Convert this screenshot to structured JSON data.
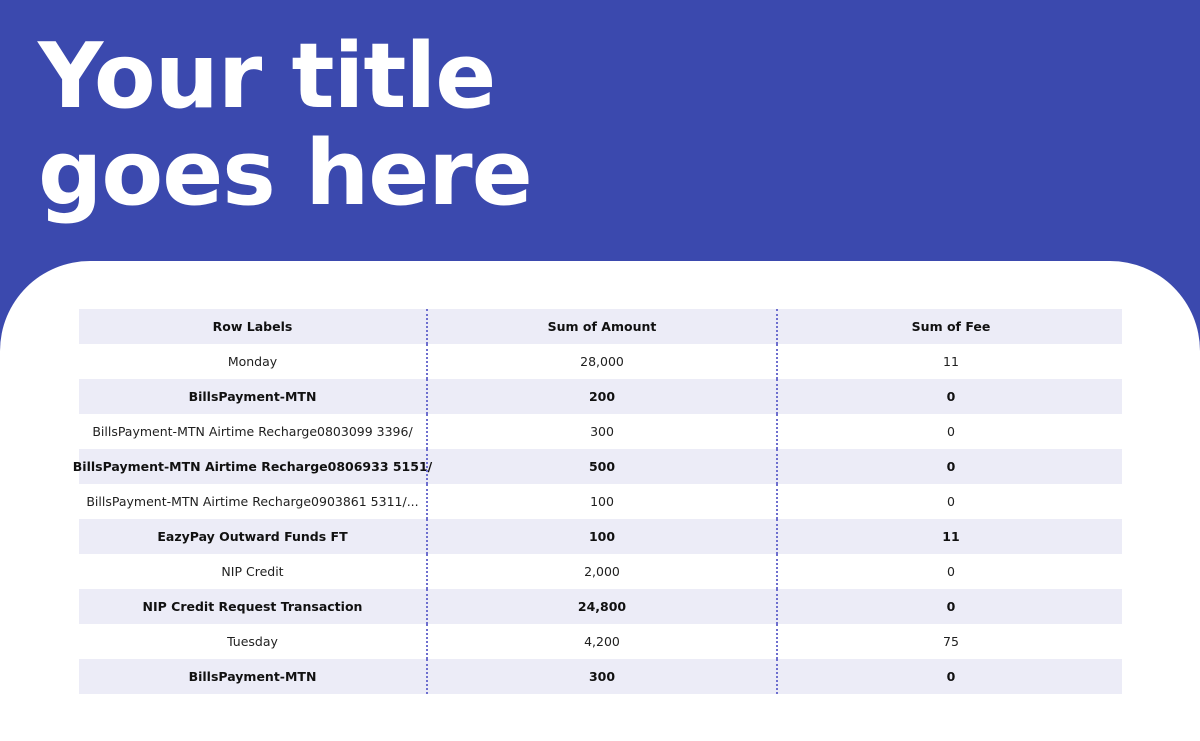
{
  "slide": {
    "title_line1": "Your title",
    "title_line2": "goes here",
    "colors": {
      "background": "#3B49AE",
      "card": "#FFFFFF",
      "row_alt": "#ECECF7",
      "divider": "#6E6FCF"
    }
  },
  "table": {
    "headers": [
      "Row Labels",
      "Sum of Amount",
      "Sum of Fee"
    ],
    "rows": [
      {
        "label": "Monday",
        "amount": "28,000",
        "fee": "11"
      },
      {
        "label": "BillsPayment-MTN",
        "amount": "200",
        "fee": "0"
      },
      {
        "label": "BillsPayment-MTN Airtime Recharge0803099 3396/",
        "amount": "300",
        "fee": "0"
      },
      {
        "label": "BillsPayment-MTN Airtime Recharge0806933 5151/",
        "amount": "500",
        "fee": "0"
      },
      {
        "label": "BillsPayment-MTN Airtime Recharge0903861 5311/...",
        "amount": "100",
        "fee": "0"
      },
      {
        "label": "EazyPay Outward Funds FT",
        "amount": "100",
        "fee": "11"
      },
      {
        "label": "NIP Credit",
        "amount": "2,000",
        "fee": "0"
      },
      {
        "label": "NIP Credit Request Transaction",
        "amount": "24,800",
        "fee": "0"
      },
      {
        "label": "Tuesday",
        "amount": "4,200",
        "fee": "75"
      },
      {
        "label": "BillsPayment-MTN",
        "amount": "300",
        "fee": "0"
      }
    ]
  }
}
